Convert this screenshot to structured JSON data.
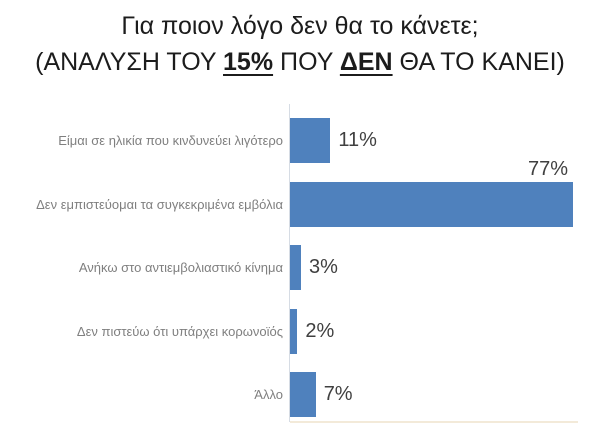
{
  "title": {
    "line1": "Για ποιον λόγο δεν θα το κάνετε;",
    "line2_parts": {
      "prefix": "(ΑΝΑΛΥΣΗ ΤΟΥ ",
      "emph1": "15%",
      "mid": " ΠΟΥ ",
      "emph2": "ΔΕΝ",
      "suffix": " ΘΑ ΤΟ ΚΑΝΕΙ)"
    }
  },
  "chart_data": {
    "type": "bar",
    "orientation": "horizontal",
    "title": "Για ποιον λόγο δεν θα το κάνετε; (ΑΝΑΛΥΣΗ ΤΟΥ 15% ΠΟΥ ΔΕΝ ΘΑ ΤΟ ΚΑΝΕΙ)",
    "categories": [
      "Είμαι σε ηλικία που κινδυνεύει λιγότερο",
      "Δεν εμπιστεύομαι τα συγκεκριμένα εμβόλια",
      "Ανήκω στο αντιεμβολιαστικό κίνημα",
      "Δεν πιστεύω ότι υπάρχει κορωνοϊός",
      "Άλλο"
    ],
    "values": [
      11,
      77,
      3,
      2,
      7
    ],
    "value_labels": [
      "11%",
      "77%",
      "3%",
      "2%",
      "7%"
    ],
    "unit": "%",
    "xlim": [
      0,
      80
    ],
    "grid": false,
    "legend": false,
    "bar_color": "#4F81BD",
    "category_label_color": "#7F7F7F",
    "value_label_color": "#404040",
    "axis_line_color": "#D6DCE4",
    "title_color": "#1C1C1C"
  }
}
